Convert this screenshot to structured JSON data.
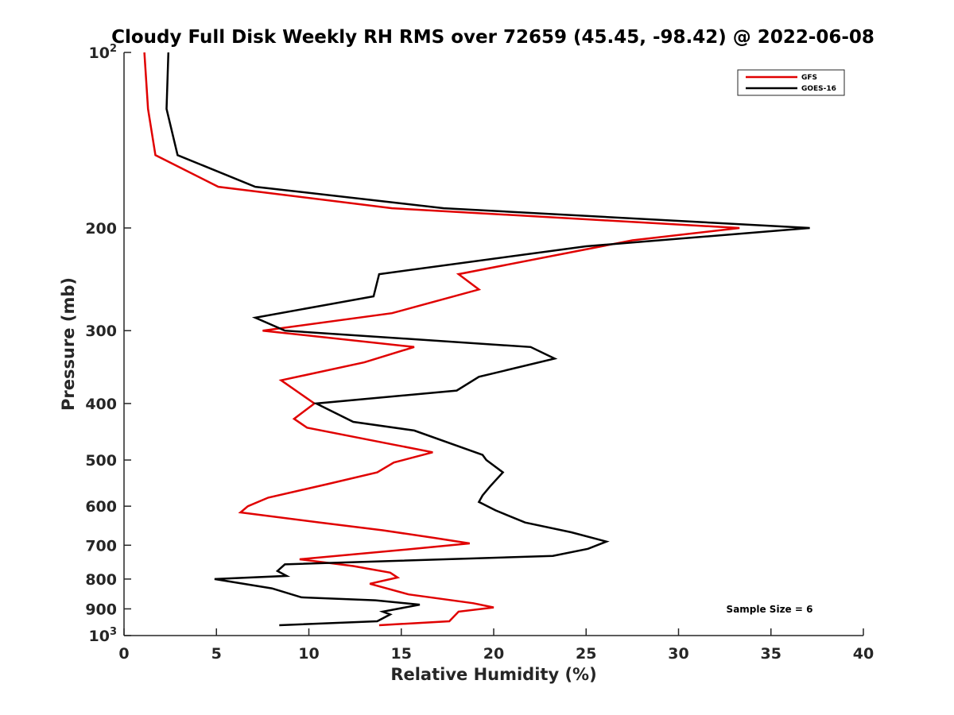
{
  "chart_data": {
    "type": "line",
    "title": "Cloudy Full Disk Weekly RH RMS over 72659 (45.45, -98.42) @ 2022-06-08",
    "xlabel": "Relative Humidity (%)",
    "ylabel": "Pressure (mb)",
    "xlim": [
      0,
      40
    ],
    "ylim": [
      100,
      1000
    ],
    "y_scale": "log",
    "y_reversed": true,
    "grid": false,
    "legend_position": "top-right",
    "x_ticks": [
      "0",
      "5",
      "10",
      "15",
      "20",
      "25",
      "30",
      "35",
      "40"
    ],
    "y_ticks": [
      {
        "value": 100,
        "base": "10",
        "exp": "2"
      },
      {
        "value": 200,
        "label": "200"
      },
      {
        "value": 300,
        "label": "300"
      },
      {
        "value": 400,
        "label": "400"
      },
      {
        "value": 500,
        "label": "500"
      },
      {
        "value": 600,
        "label": "600"
      },
      {
        "value": 700,
        "label": "700"
      },
      {
        "value": 800,
        "label": "800"
      },
      {
        "value": 900,
        "label": "900"
      },
      {
        "value": 1000,
        "base": "10",
        "exp": "3"
      }
    ],
    "series": [
      {
        "name": "GFS",
        "color": "#e00000",
        "points": [
          {
            "p": 100,
            "rh": 1.1
          },
          {
            "p": 125,
            "rh": 1.3
          },
          {
            "p": 150,
            "rh": 1.7
          },
          {
            "p": 170,
            "rh": 5.1
          },
          {
            "p": 185,
            "rh": 14.5
          },
          {
            "p": 200,
            "rh": 33.3
          },
          {
            "p": 210,
            "rh": 27.5
          },
          {
            "p": 240,
            "rh": 18.1
          },
          {
            "p": 255,
            "rh": 19.2
          },
          {
            "p": 280,
            "rh": 14.5
          },
          {
            "p": 300,
            "rh": 7.5
          },
          {
            "p": 320,
            "rh": 15.7
          },
          {
            "p": 340,
            "rh": 13.0
          },
          {
            "p": 365,
            "rh": 8.5
          },
          {
            "p": 400,
            "rh": 10.3
          },
          {
            "p": 425,
            "rh": 9.2
          },
          {
            "p": 440,
            "rh": 9.9
          },
          {
            "p": 470,
            "rh": 14.5
          },
          {
            "p": 485,
            "rh": 16.7
          },
          {
            "p": 505,
            "rh": 14.6
          },
          {
            "p": 525,
            "rh": 13.7
          },
          {
            "p": 550,
            "rh": 11.0
          },
          {
            "p": 580,
            "rh": 7.8
          },
          {
            "p": 600,
            "rh": 6.7
          },
          {
            "p": 615,
            "rh": 6.3
          },
          {
            "p": 640,
            "rh": 10.6
          },
          {
            "p": 660,
            "rh": 14.0
          },
          {
            "p": 680,
            "rh": 16.8
          },
          {
            "p": 695,
            "rh": 18.7
          },
          {
            "p": 710,
            "rh": 15.7
          },
          {
            "p": 740,
            "rh": 9.5
          },
          {
            "p": 760,
            "rh": 12.4
          },
          {
            "p": 780,
            "rh": 14.4
          },
          {
            "p": 795,
            "rh": 14.8
          },
          {
            "p": 815,
            "rh": 13.3
          },
          {
            "p": 850,
            "rh": 15.4
          },
          {
            "p": 880,
            "rh": 18.9
          },
          {
            "p": 895,
            "rh": 20.0
          },
          {
            "p": 910,
            "rh": 18.1
          },
          {
            "p": 945,
            "rh": 17.6
          },
          {
            "p": 960,
            "rh": 13.8
          }
        ]
      },
      {
        "name": "GOES-16",
        "color": "#000000",
        "points": [
          {
            "p": 100,
            "rh": 2.4
          },
          {
            "p": 125,
            "rh": 2.3
          },
          {
            "p": 150,
            "rh": 2.9
          },
          {
            "p": 170,
            "rh": 7.1
          },
          {
            "p": 185,
            "rh": 17.3
          },
          {
            "p": 200,
            "rh": 37.1
          },
          {
            "p": 215,
            "rh": 25.0
          },
          {
            "p": 240,
            "rh": 13.8
          },
          {
            "p": 262,
            "rh": 13.5
          },
          {
            "p": 285,
            "rh": 7.1
          },
          {
            "p": 300,
            "rh": 8.7
          },
          {
            "p": 320,
            "rh": 22.0
          },
          {
            "p": 335,
            "rh": 23.3
          },
          {
            "p": 360,
            "rh": 19.2
          },
          {
            "p": 380,
            "rh": 18.0
          },
          {
            "p": 400,
            "rh": 10.4
          },
          {
            "p": 430,
            "rh": 12.4
          },
          {
            "p": 445,
            "rh": 15.7
          },
          {
            "p": 490,
            "rh": 19.4
          },
          {
            "p": 500,
            "rh": 19.6
          },
          {
            "p": 525,
            "rh": 20.5
          },
          {
            "p": 555,
            "rh": 19.8
          },
          {
            "p": 575,
            "rh": 19.4
          },
          {
            "p": 590,
            "rh": 19.2
          },
          {
            "p": 610,
            "rh": 20.1
          },
          {
            "p": 640,
            "rh": 21.7
          },
          {
            "p": 665,
            "rh": 24.2
          },
          {
            "p": 690,
            "rh": 26.1
          },
          {
            "p": 710,
            "rh": 25.1
          },
          {
            "p": 730,
            "rh": 23.2
          },
          {
            "p": 755,
            "rh": 8.7
          },
          {
            "p": 775,
            "rh": 8.3
          },
          {
            "p": 790,
            "rh": 8.8
          },
          {
            "p": 800,
            "rh": 4.9
          },
          {
            "p": 830,
            "rh": 8.0
          },
          {
            "p": 860,
            "rh": 9.6
          },
          {
            "p": 870,
            "rh": 13.6
          },
          {
            "p": 885,
            "rh": 16.0
          },
          {
            "p": 910,
            "rh": 14.0
          },
          {
            "p": 920,
            "rh": 14.4
          },
          {
            "p": 945,
            "rh": 13.7
          },
          {
            "p": 960,
            "rh": 8.4
          }
        ]
      }
    ],
    "annotation": "Sample Size = 6"
  }
}
